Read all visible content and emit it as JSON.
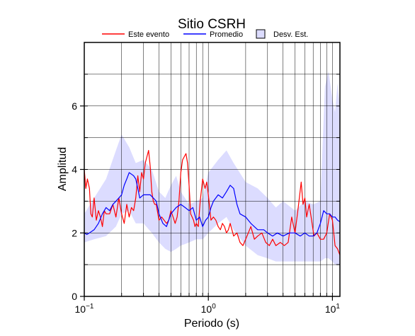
{
  "chart_data": {
    "type": "line",
    "title": "Sitio CSRH",
    "xlabel": "Periodo (s)",
    "ylabel": "Amplitud",
    "x_scale": "log",
    "xlim": [
      0.1,
      11.5
    ],
    "ylim": [
      0,
      8
    ],
    "y_ticks": [
      0,
      2,
      4,
      6
    ],
    "y_tick_labels": [
      "0",
      "2",
      "4",
      "6"
    ],
    "x_ticks": [
      0.1,
      1,
      10
    ],
    "x_tick_labels": [
      "10^-1",
      "10^0",
      "10^1"
    ],
    "x_tick_base": "10",
    "x_tick_exps": [
      "−1",
      "0",
      "1"
    ],
    "grid": true,
    "legend_position": "top",
    "legend": [
      {
        "label": "Este evento",
        "kind": "line",
        "color": "#ff0000"
      },
      {
        "label": "Promedio",
        "kind": "line",
        "color": "#0000ff"
      },
      {
        "label": "Desv. Est.",
        "kind": "patch",
        "color": "#dcdcff"
      }
    ],
    "band": {
      "name": "Desv. Est.",
      "color": "#dcdcff",
      "x": [
        0.1,
        0.12,
        0.15,
        0.18,
        0.2,
        0.23,
        0.26,
        0.3,
        0.35,
        0.4,
        0.45,
        0.5,
        0.55,
        0.6,
        0.7,
        0.8,
        0.9,
        1.0,
        1.2,
        1.4,
        1.6,
        2.0,
        2.5,
        3.0,
        3.5,
        4.0,
        5.0,
        6.0,
        7.0,
        8.0,
        8.7,
        9.3,
        10.0,
        10.5,
        11.0,
        11.5
      ],
      "upper": [
        2.6,
        3.1,
        3.7,
        4.6,
        5.1,
        4.7,
        4.2,
        4.3,
        4.0,
        3.3,
        3.1,
        3.5,
        3.8,
        3.3,
        2.9,
        3.0,
        3.1,
        3.9,
        4.3,
        4.6,
        4.2,
        3.6,
        3.4,
        3.1,
        2.8,
        3.0,
        2.7,
        3.0,
        2.9,
        3.0,
        6.6,
        7.1,
        6.2,
        5.8,
        6.7,
        6.0
      ],
      "lower": [
        1.7,
        1.8,
        1.9,
        2.2,
        2.6,
        2.7,
        2.3,
        2.3,
        2.0,
        1.7,
        1.5,
        1.4,
        1.5,
        1.6,
        1.7,
        1.8,
        1.8,
        2.0,
        2.3,
        2.5,
        2.1,
        1.6,
        1.3,
        1.2,
        1.1,
        1.1,
        1.1,
        1.1,
        1.1,
        1.1,
        1.2,
        1.2,
        1.1,
        1.0,
        1.0,
        1.0
      ]
    },
    "series": [
      {
        "name": "Este evento",
        "color": "#ff0000",
        "x": [
          0.1,
          0.103,
          0.106,
          0.11,
          0.113,
          0.116,
          0.12,
          0.125,
          0.13,
          0.135,
          0.14,
          0.145,
          0.15,
          0.16,
          0.17,
          0.18,
          0.19,
          0.2,
          0.21,
          0.22,
          0.23,
          0.24,
          0.25,
          0.26,
          0.27,
          0.28,
          0.29,
          0.3,
          0.31,
          0.32,
          0.33,
          0.34,
          0.35,
          0.36,
          0.37,
          0.38,
          0.4,
          0.42,
          0.44,
          0.46,
          0.48,
          0.5,
          0.52,
          0.54,
          0.56,
          0.58,
          0.6,
          0.62,
          0.64,
          0.66,
          0.68,
          0.7,
          0.72,
          0.74,
          0.76,
          0.78,
          0.8,
          0.83,
          0.86,
          0.9,
          0.94,
          0.97,
          1.0,
          1.05,
          1.1,
          1.15,
          1.2,
          1.25,
          1.3,
          1.35,
          1.4,
          1.45,
          1.5,
          1.6,
          1.7,
          1.8,
          1.9,
          2.0,
          2.1,
          2.2,
          2.35,
          2.5,
          2.7,
          2.9,
          3.1,
          3.3,
          3.5,
          3.8,
          4.1,
          4.4,
          4.7,
          5.0,
          5.3,
          5.6,
          5.8,
          6.0,
          6.2,
          6.5,
          6.8,
          7.1,
          7.5,
          8.0,
          8.5,
          9.0,
          9.5,
          10.0,
          10.5,
          11.0,
          11.5
        ],
        "y": [
          4.0,
          3.4,
          3.7,
          3.4,
          2.6,
          2.5,
          3.1,
          2.4,
          2.7,
          2.5,
          2.2,
          2.7,
          2.6,
          2.6,
          2.9,
          2.5,
          3.1,
          2.6,
          2.3,
          2.9,
          2.5,
          2.8,
          2.7,
          3.1,
          3.8,
          3.3,
          3.9,
          3.7,
          4.2,
          4.4,
          4.6,
          4.1,
          3.3,
          3.0,
          2.9,
          2.9,
          2.4,
          2.5,
          2.4,
          2.3,
          2.4,
          2.7,
          2.5,
          2.3,
          2.5,
          3.0,
          3.9,
          4.3,
          4.4,
          4.5,
          4.2,
          3.5,
          2.6,
          2.5,
          2.4,
          2.2,
          2.3,
          2.2,
          3.0,
          3.7,
          3.4,
          3.6,
          3.2,
          2.4,
          2.5,
          2.4,
          2.2,
          2.1,
          2.3,
          2.2,
          2.0,
          2.1,
          2.3,
          1.9,
          2.0,
          1.7,
          1.6,
          1.8,
          2.0,
          2.2,
          1.8,
          1.9,
          2.0,
          1.7,
          1.6,
          1.8,
          1.6,
          1.7,
          1.6,
          1.7,
          2.5,
          2.0,
          2.8,
          3.6,
          2.9,
          3.1,
          2.5,
          2.9,
          2.4,
          1.9,
          2.0,
          1.8,
          1.8,
          2.0,
          2.6,
          2.4,
          1.6,
          1.5,
          1.3
        ]
      },
      {
        "name": "Promedio",
        "color": "#0000ff",
        "x": [
          0.1,
          0.105,
          0.11,
          0.12,
          0.13,
          0.14,
          0.15,
          0.16,
          0.17,
          0.18,
          0.19,
          0.2,
          0.21,
          0.22,
          0.23,
          0.24,
          0.25,
          0.26,
          0.27,
          0.28,
          0.3,
          0.32,
          0.34,
          0.36,
          0.38,
          0.4,
          0.43,
          0.46,
          0.5,
          0.55,
          0.6,
          0.65,
          0.7,
          0.75,
          0.8,
          0.85,
          0.9,
          0.95,
          1.0,
          1.05,
          1.1,
          1.2,
          1.3,
          1.4,
          1.5,
          1.6,
          1.7,
          1.8,
          2.0,
          2.2,
          2.5,
          2.8,
          3.0,
          3.3,
          3.6,
          4.0,
          4.5,
          5.0,
          5.5,
          6.0,
          6.5,
          7.0,
          7.5,
          8.0,
          8.5,
          9.0,
          9.5,
          10.0,
          10.5,
          11.0,
          11.5
        ],
        "y": [
          2.0,
          1.95,
          2.0,
          2.1,
          2.3,
          2.6,
          2.8,
          2.7,
          2.9,
          3.0,
          3.1,
          3.2,
          3.5,
          3.7,
          3.9,
          3.85,
          3.8,
          3.7,
          3.4,
          3.1,
          3.2,
          3.2,
          3.2,
          3.1,
          3.0,
          2.6,
          2.3,
          2.2,
          2.6,
          2.8,
          2.9,
          2.8,
          2.7,
          2.8,
          2.4,
          2.5,
          2.2,
          2.4,
          2.5,
          2.8,
          3.0,
          3.2,
          3.1,
          3.3,
          3.5,
          3.4,
          2.9,
          2.6,
          2.5,
          2.3,
          2.1,
          2.1,
          2.0,
          1.9,
          2.0,
          1.9,
          2.0,
          2.0,
          1.9,
          2.0,
          1.9,
          1.9,
          2.0,
          2.3,
          2.7,
          2.6,
          2.6,
          2.5,
          2.5,
          2.4,
          2.35
        ]
      }
    ]
  }
}
